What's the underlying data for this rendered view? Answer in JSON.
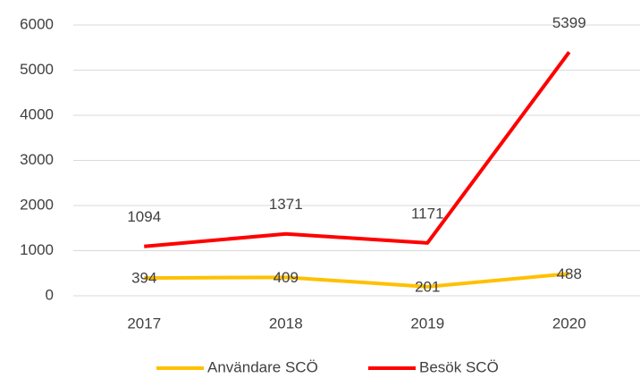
{
  "chart_data": {
    "type": "line",
    "categories": [
      "2017",
      "2018",
      "2019",
      "2020"
    ],
    "series": [
      {
        "name": "Användare SCÖ",
        "color": "#FFC000",
        "values": [
          394,
          409,
          201,
          488
        ]
      },
      {
        "name": "Besök SCÖ",
        "color": "#FF0000",
        "values": [
          1094,
          1371,
          1171,
          5399
        ]
      }
    ],
    "ylim": [
      0,
      6000
    ],
    "yticks": [
      0,
      1000,
      2000,
      3000,
      4000,
      5000,
      6000
    ],
    "grid": true,
    "legend": "bottom"
  }
}
